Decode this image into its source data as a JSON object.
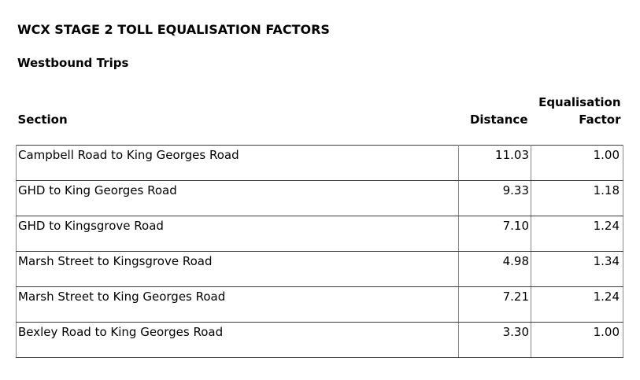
{
  "page": {
    "title": "WCX STAGE 2 TOLL EQUALISATION FACTORS",
    "subtitle": "Westbound Trips"
  },
  "table": {
    "columns": {
      "section": "Section",
      "distance": "Distance",
      "factor_line1": "Equalisation",
      "factor_line2": "Factor"
    },
    "rows": [
      {
        "section": "Campbell Road to King Georges Road",
        "distance": "11.03",
        "factor": "1.00"
      },
      {
        "section": "GHD to King Georges Road",
        "distance": "9.33",
        "factor": "1.18"
      },
      {
        "section": "GHD to Kingsgrove Road",
        "distance": "7.10",
        "factor": "1.24"
      },
      {
        "section": "Marsh Street to Kingsgrove Road",
        "distance": "4.98",
        "factor": "1.34"
      },
      {
        "section": "Marsh Street to King Georges Road",
        "distance": "7.21",
        "factor": "1.24"
      },
      {
        "section": "Bexley Road to King Georges Road",
        "distance": "3.30",
        "factor": "1.00"
      }
    ]
  },
  "colors": {
    "text": "#000000",
    "background": "#ffffff",
    "border_vertical": "#8a8a8a",
    "border_horizontal": "#3c3c3c"
  }
}
